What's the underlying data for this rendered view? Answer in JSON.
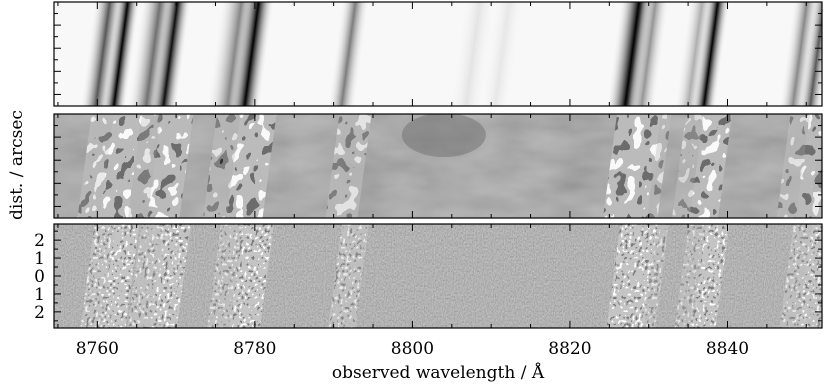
{
  "chart_data": {
    "type": "heatmap",
    "title": "",
    "xlabel": "observed wavelength / Å",
    "ylabel": "dist. / arcsec",
    "xlim": [
      8754.5,
      8852
    ],
    "x_ticks": [
      8760,
      8780,
      8800,
      8820,
      8840
    ],
    "x_tick_labels": [
      "8760",
      "8780",
      "8800",
      "8820",
      "8840"
    ],
    "panels": [
      {
        "name": "",
        "colormap": "gray",
        "y_ticks": [],
        "y_tick_labels": [],
        "spectral_lines": [
          {
            "wavelength": 8759.8,
            "depth": 0.65,
            "width": 0.9
          },
          {
            "wavelength": 8762.1,
            "depth": 1.0,
            "width": 0.7
          },
          {
            "wavelength": 8766.2,
            "depth": 0.55,
            "width": 1.1
          },
          {
            "wavelength": 8768.4,
            "depth": 0.95,
            "width": 0.8
          },
          {
            "wavelength": 8776.5,
            "depth": 0.45,
            "width": 1.2
          },
          {
            "wavelength": 8778.7,
            "depth": 1.0,
            "width": 0.9
          },
          {
            "wavelength": 8791.0,
            "depth": 0.5,
            "width": 0.8
          },
          {
            "wavelength": 8806.8,
            "depth": 0.08,
            "width": 1.0
          },
          {
            "wavelength": 8810.5,
            "depth": 0.07,
            "width": 0.9
          },
          {
            "wavelength": 8827.0,
            "depth": 1.0,
            "width": 1.1
          },
          {
            "wavelength": 8829.1,
            "depth": 0.4,
            "width": 0.8
          },
          {
            "wavelength": 8835.0,
            "depth": 0.3,
            "width": 0.8
          },
          {
            "wavelength": 8837.0,
            "depth": 1.0,
            "width": 0.7
          },
          {
            "wavelength": 8848.3,
            "depth": 0.45,
            "width": 0.8
          },
          {
            "wavelength": 8850.5,
            "depth": 0.65,
            "width": 0.7
          }
        ]
      },
      {
        "name": "",
        "colormap": "gray",
        "y_ticks": [],
        "y_tick_labels": []
      },
      {
        "name": "",
        "colormap": "gray",
        "ylim": [
          -2.9,
          2.9
        ],
        "y_ticks": [
          2,
          1,
          0,
          -1,
          -2
        ],
        "y_tick_labels": [
          "2",
          "1",
          "0",
          "1",
          "2"
        ]
      }
    ],
    "grid": false,
    "legend": "none"
  }
}
